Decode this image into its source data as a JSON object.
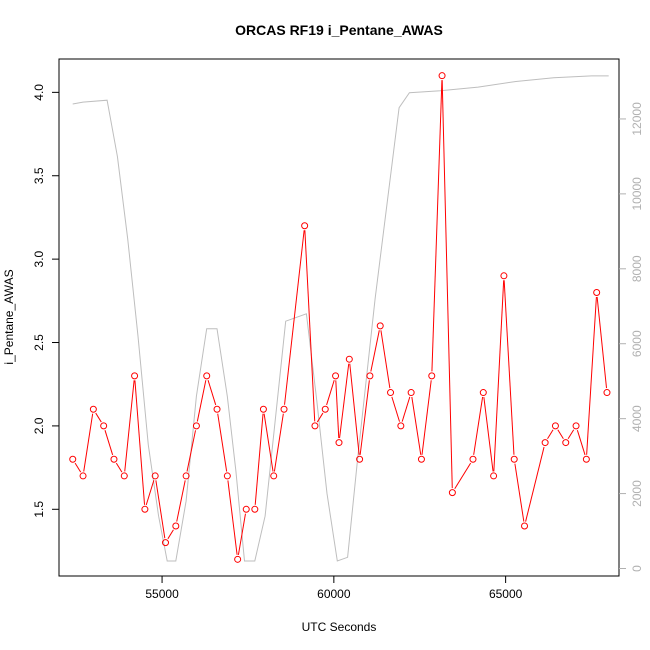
{
  "chart_data": {
    "type": "line",
    "title": "ORCAS RF19 i_Pentane_AWAS",
    "xlabel": "UTC Seconds",
    "ylabel": "i_Pentane_AWAS",
    "xlim": [
      52000,
      68300
    ],
    "ylim": [
      1.1,
      4.2
    ],
    "y2lim": [
      -200,
      13600
    ],
    "xticks": [
      55000,
      60000,
      65000
    ],
    "xtick_labels": [
      "55000",
      "60000",
      "65000"
    ],
    "yticks": [
      1.5,
      2.0,
      2.5,
      3.0,
      3.5,
      4.0
    ],
    "ytick_labels": [
      "1.5",
      "2.0",
      "2.5",
      "3.0",
      "3.5",
      "4.0"
    ],
    "y2ticks": [
      0,
      2000,
      4000,
      6000,
      8000,
      10000,
      12000
    ],
    "y2tick_labels": [
      "0",
      "2000",
      "4000",
      "6000",
      "8000",
      "10000",
      "12000"
    ],
    "grid": false,
    "colors": {
      "primary": "#ff0000",
      "secondary": "#bebebe",
      "axis": "#000000",
      "right_axis": "#b0b0b0"
    },
    "series": [
      {
        "axis": "left",
        "style": "line+open-circles",
        "x": [
          52400,
          52700,
          53000,
          53300,
          53600,
          53900,
          54200,
          54500,
          54800,
          55100,
          55400,
          55700,
          56000,
          56300,
          56600,
          56900,
          57200,
          57450,
          57700,
          57950,
          58250,
          58550,
          59150,
          59450,
          59750,
          60050,
          60150,
          60450,
          60750,
          61050,
          61350,
          61650,
          61950,
          62250,
          62550,
          62850,
          63150,
          63450,
          64050,
          64350,
          64650,
          64950,
          65250,
          65550,
          66150,
          66450,
          66750,
          67050,
          67350,
          67650,
          67950
        ],
        "values": [
          1.8,
          1.7,
          2.1,
          2.0,
          1.8,
          1.7,
          2.3,
          1.5,
          1.7,
          1.3,
          1.4,
          1.7,
          2.0,
          2.3,
          2.1,
          1.7,
          1.2,
          1.5,
          1.5,
          2.1,
          1.7,
          2.1,
          3.2,
          2.0,
          2.1,
          2.3,
          1.9,
          2.4,
          1.8,
          2.3,
          2.6,
          2.2,
          2.0,
          2.2,
          1.8,
          2.3,
          4.1,
          1.6,
          1.8,
          2.2,
          1.7,
          2.9,
          1.8,
          1.4,
          1.9,
          2.0,
          1.9,
          2.0,
          1.8,
          2.8,
          2.2
        ]
      },
      {
        "axis": "right",
        "style": "line",
        "x": [
          52400,
          52700,
          53400,
          53700,
          54000,
          54300,
          54600,
          54900,
          55150,
          55400,
          55700,
          56000,
          56300,
          56600,
          56900,
          57150,
          57400,
          57700,
          58000,
          58600,
          59200,
          59500,
          59800,
          60100,
          60400,
          60700,
          61200,
          61900,
          62200,
          63100,
          64200,
          65300,
          66400,
          67500,
          68000
        ],
        "values": [
          12400,
          12450,
          12500,
          11000,
          8800,
          6200,
          3300,
          1400,
          200,
          200,
          1800,
          4600,
          6400,
          6400,
          4600,
          2600,
          200,
          200,
          1400,
          6600,
          6800,
          4500,
          2000,
          200,
          300,
          3000,
          7200,
          12300,
          12700,
          12750,
          12850,
          13000,
          13100,
          13150,
          13150
        ]
      }
    ]
  }
}
